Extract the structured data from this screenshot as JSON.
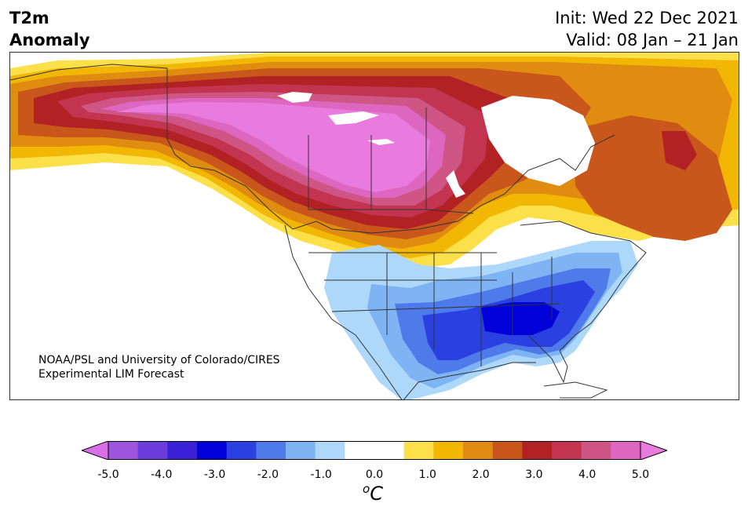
{
  "title": {
    "left_line1": "T2m",
    "left_line2": "Anomaly",
    "init": "Init: Wed 22 Dec 2021",
    "valid": "Valid: 08 Jan – 21 Jan"
  },
  "credit": {
    "line1": "NOAA/PSL and University of Colorado/CIRES",
    "line2": "Experimental LIM Forecast"
  },
  "colorbar": {
    "ticks": [
      "-5.0",
      "-4.0",
      "-3.0",
      "-2.0",
      "-1.0",
      "0.0",
      "1.0",
      "2.0",
      "3.0",
      "4.0",
      "5.0"
    ],
    "units_base": "C",
    "units_sup": "o",
    "colors": [
      "#d86fe6",
      "#9c55dc",
      "#6b3ddc",
      "#3a20d6",
      "#0000d8",
      "#2a40e0",
      "#4f7aea",
      "#7fb4f4",
      "#aed8fa",
      "#ffffff",
      "#ffffff",
      "#fbe04a",
      "#f2b705",
      "#e08c10",
      "#c9571c",
      "#b22224",
      "#c23450",
      "#cf5585",
      "#dd66c0",
      "#e97ade"
    ]
  }
}
